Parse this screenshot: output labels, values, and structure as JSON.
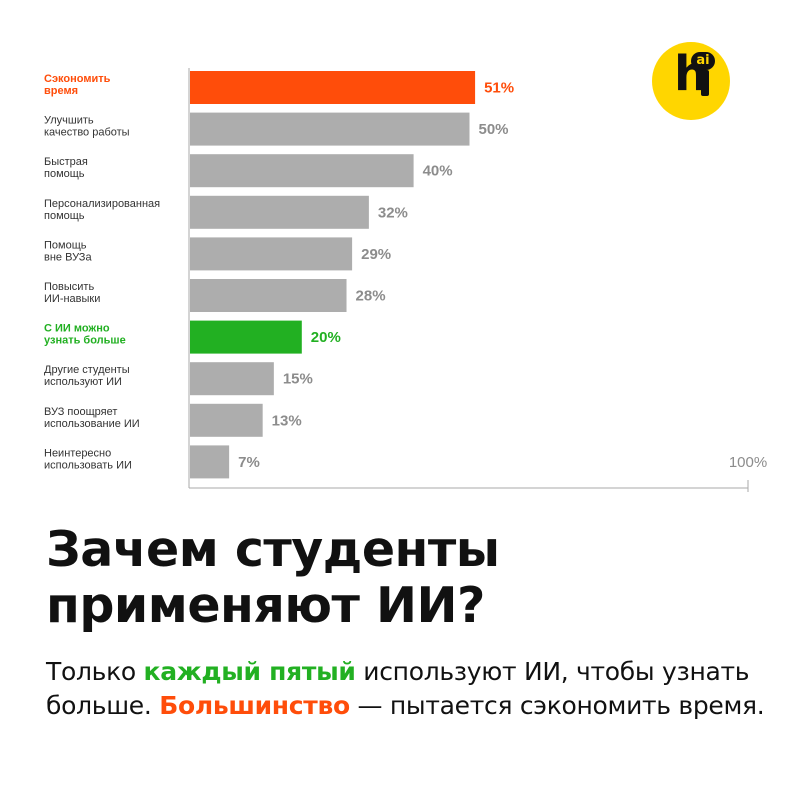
{
  "chart_data": {
    "type": "bar",
    "orientation": "horizontal",
    "categories": [
      [
        "Сэкономить",
        "время"
      ],
      [
        "Улучшить",
        "качество работы"
      ],
      [
        "Быстрая",
        "помощь"
      ],
      [
        "Персонализированная",
        "помощь"
      ],
      [
        "Помощь",
        "вне ВУЗа"
      ],
      [
        "Повысить",
        "ИИ-навыки"
      ],
      [
        "С ИИ можно",
        "узнать больше"
      ],
      [
        "Другие студенты",
        "используют ИИ"
      ],
      [
        "ВУЗ поощряет",
        "использование ИИ"
      ],
      [
        "Неинтересно",
        "использовать ИИ"
      ]
    ],
    "values": [
      51,
      50,
      40,
      32,
      29,
      28,
      20,
      15,
      13,
      7
    ],
    "value_labels": [
      "51%",
      "50%",
      "40%",
      "32%",
      "29%",
      "28%",
      "20%",
      "15%",
      "13%",
      "7%"
    ],
    "highlight": [
      "orange",
      null,
      null,
      null,
      null,
      null,
      "green",
      null,
      null,
      null
    ],
    "xlim": [
      0,
      100
    ],
    "max_label": "100%",
    "colors": {
      "default": "#adadad",
      "orange": "#ff4d0a",
      "green": "#22b022",
      "axis": "#aaaaaa"
    }
  },
  "logo": {
    "letter": "h",
    "bubble": "ai"
  },
  "title": {
    "line1": "Зачем студенты",
    "line2": "применяют ИИ?"
  },
  "subtitle": {
    "part1": "Только ",
    "highlight1": "каждый пятый",
    "part2": " используют ИИ, чтобы узнать больше. ",
    "highlight2": "Большинство",
    "part3": " — пытается сэкономить время."
  }
}
